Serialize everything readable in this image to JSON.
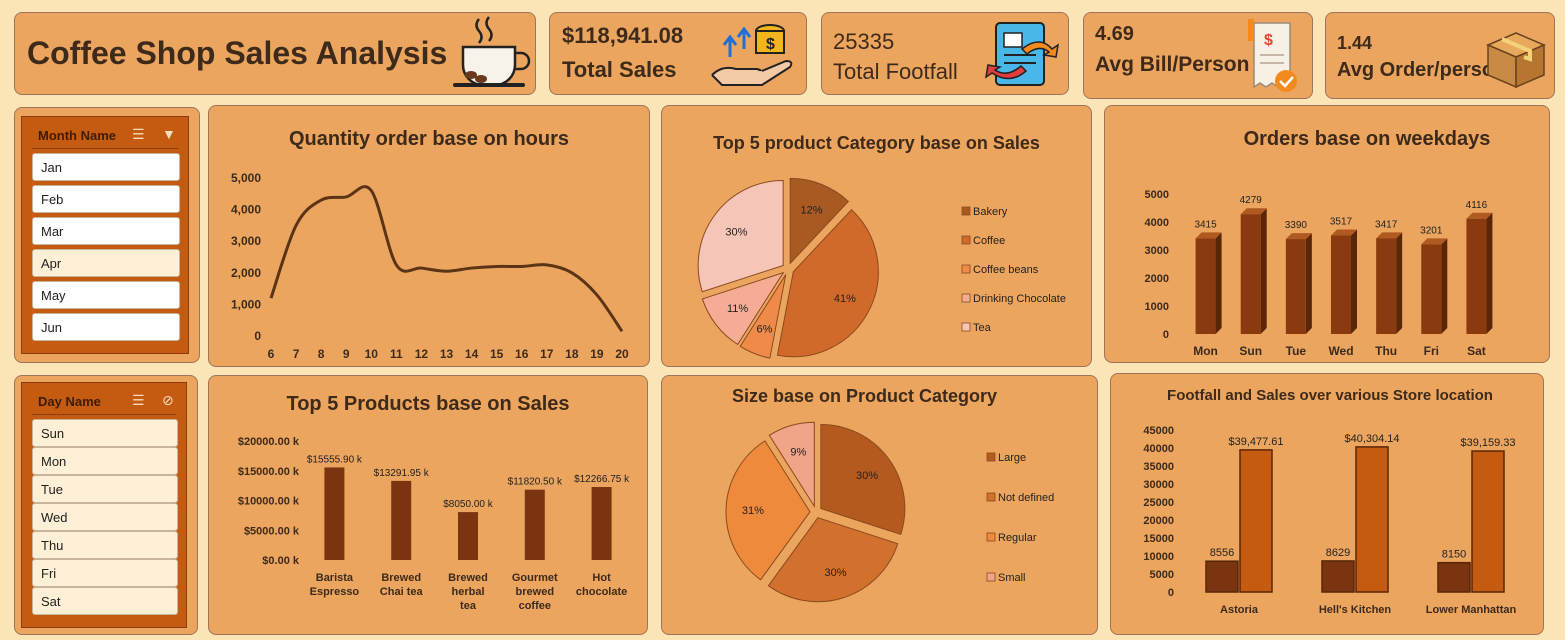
{
  "header": {
    "title": "Coffee Shop Sales Analysis",
    "icon": "coffee-cup-icon"
  },
  "kpis": [
    {
      "value": "$118,941.08",
      "label": "Total Sales",
      "icon": "money-hand-icon"
    },
    {
      "value": "25335",
      "label": "Total Footfall",
      "icon": "invoice-exchange-icon"
    },
    {
      "value": "4.69",
      "label": "Avg Bill/Person",
      "icon": "receipt-icon"
    },
    {
      "value": "1.44",
      "label": "Avg Order/person",
      "icon": "box-icon"
    }
  ],
  "slicers": {
    "month": {
      "header": "Month Name",
      "items": [
        "Jan",
        "Feb",
        "Mar",
        "Apr",
        "May",
        "Jun"
      ],
      "selected": [
        "Jan",
        "Feb",
        "Mar",
        "May",
        "Jun"
      ]
    },
    "day": {
      "header": "Day Name",
      "items": [
        "Sun",
        "Mon",
        "Tue",
        "Wed",
        "Thu",
        "Fri",
        "Sat"
      ],
      "selected": []
    }
  },
  "chart_data": [
    {
      "id": "hours",
      "type": "line",
      "title": "Quantity order base on hours",
      "x": [
        6,
        7,
        8,
        9,
        10,
        11,
        12,
        13,
        14,
        15,
        16,
        17,
        18,
        19,
        20
      ],
      "values": [
        1200,
        3500,
        4300,
        4400,
        4600,
        2250,
        2150,
        2050,
        2150,
        2200,
        2200,
        2250,
        2000,
        1300,
        150
      ],
      "ylim": [
        0,
        5000
      ],
      "yticks": [
        "0",
        "1,000",
        "2,000",
        "3,000",
        "4,000",
        "5,000"
      ],
      "color": "#5b3416"
    },
    {
      "id": "category",
      "type": "pie",
      "title": "Top 5 product Category base on Sales",
      "labels": [
        "Bakery",
        "Coffee",
        "Coffee beans",
        "Drinking Chocolate",
        "Tea"
      ],
      "values": [
        12,
        41,
        6,
        11,
        30
      ],
      "value_labels": [
        "12%",
        "41%",
        "6%",
        "11%",
        "30%"
      ],
      "colors": [
        "#a85a22",
        "#d1692a",
        "#f08a48",
        "#f4ad94",
        "#f5c6b8"
      ],
      "legend": "right"
    },
    {
      "id": "weekdays",
      "type": "bar",
      "title": "Orders base on weekdays",
      "categories": [
        "Mon",
        "Sun",
        "Tue",
        "Wed",
        "Thu",
        "Fri",
        "Sat"
      ],
      "values": [
        3415,
        4279,
        3390,
        3517,
        3417,
        3201,
        4116
      ],
      "ylim": [
        0,
        5000
      ],
      "yticks": [
        "0",
        "1000",
        "2000",
        "3000",
        "4000",
        "5000"
      ],
      "color": "#8a3a0f"
    },
    {
      "id": "products",
      "type": "bar",
      "title": "Top 5 Products base on Sales",
      "categories": [
        "Barista Espresso",
        "Brewed Chai tea",
        "Brewed herbal tea",
        "Gourmet brewed coffee",
        "Hot chocolate"
      ],
      "values": [
        15555.9,
        13291.95,
        8050.0,
        11820.5,
        12266.75
      ],
      "value_labels": [
        "$15555.90 k",
        "$13291.95 k",
        "$8050.00 k",
        "$11820.50 k",
        "$12266.75 k"
      ],
      "ylim": [
        0,
        20000
      ],
      "yticks": [
        "$0.00 k",
        "$5000.00 k",
        "$10000.00 k",
        "$15000.00 k",
        "$20000.00 k"
      ],
      "color": "#7a3510"
    },
    {
      "id": "size",
      "type": "pie",
      "title": "Size base on Product Category",
      "labels": [
        "Large",
        "Not defined",
        "Regular",
        "Small"
      ],
      "values": [
        30,
        30,
        31,
        9
      ],
      "value_labels": [
        "30%",
        "30%",
        "31%",
        "9%"
      ],
      "colors": [
        "#b45a1e",
        "#d2702d",
        "#ef8a3c",
        "#f0a488"
      ],
      "legend": "right"
    },
    {
      "id": "store",
      "type": "bar",
      "title": "Footfall and Sales over various Store location",
      "categories": [
        "Astoria",
        "Hell's Kitchen",
        "Lower Manhattan"
      ],
      "series": [
        {
          "values": [
            8556,
            8629,
            8150
          ],
          "value_labels": [
            "8556",
            "8629",
            "8150"
          ],
          "color": "#7a3510"
        },
        {
          "values": [
            39477.61,
            40304.14,
            39159.33
          ],
          "value_labels": [
            "$39,477.61",
            "$40,304.14",
            "$39,159.33"
          ],
          "color": "#c55a11"
        }
      ],
      "ylim": [
        0,
        45000
      ],
      "yticks": [
        "0",
        "5000",
        "10000",
        "15000",
        "20000",
        "25000",
        "30000",
        "35000",
        "40000",
        "45000"
      ]
    }
  ]
}
